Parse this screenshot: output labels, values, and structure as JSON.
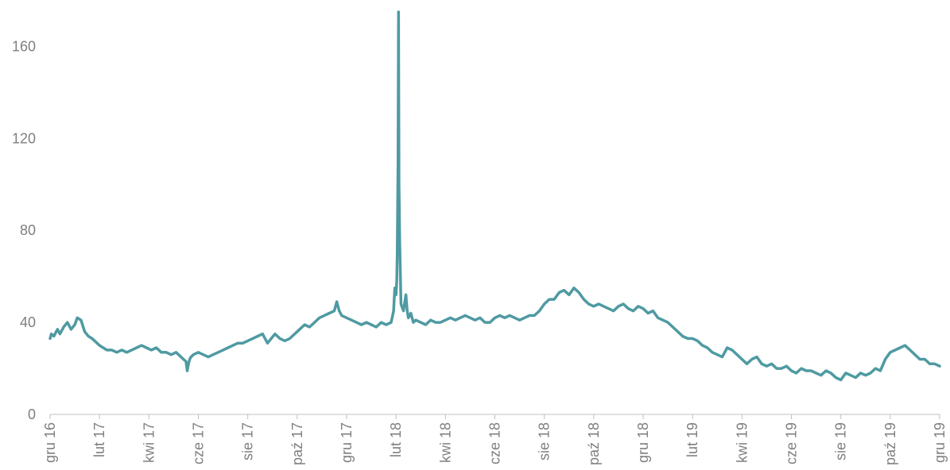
{
  "chart_data": {
    "type": "line",
    "title": "",
    "xlabel": "",
    "ylabel": "",
    "ylim": [
      0,
      175
    ],
    "y_ticks": [
      0,
      40,
      80,
      120,
      160
    ],
    "x_tick_labels": [
      "gru 16",
      "lut 17",
      "kwi 17",
      "cze 17",
      "sie 17",
      "paź 17",
      "gru 17",
      "lut 18",
      "kwi 18",
      "cze 18",
      "sie 18",
      "paź 18",
      "gru 18",
      "lut 19",
      "kwi 19",
      "cze 19",
      "sie 19",
      "paź 19",
      "gru 19"
    ],
    "x_range": [
      0,
      36
    ],
    "grid": false,
    "legend": "none",
    "colors": {
      "line": "#4f9aa2",
      "axis": "#bfbfbf",
      "tick_text": "#7f7f7f"
    },
    "series": [
      {
        "x": [
          0,
          0.05,
          0.15,
          0.3,
          0.4,
          0.55,
          0.7,
          0.85,
          1.0,
          1.1,
          1.25,
          1.4,
          1.55,
          1.7,
          1.8,
          1.9,
          2.0,
          2.15,
          2.3,
          2.5,
          2.7,
          2.9,
          3.1,
          3.3,
          3.5,
          3.7,
          3.9,
          4.1,
          4.3,
          4.5,
          4.7,
          4.9,
          5.1,
          5.3,
          5.5,
          5.55,
          5.6,
          5.65,
          5.7,
          5.8,
          6.0,
          6.2,
          6.4,
          6.6,
          6.8,
          7.0,
          7.2,
          7.4,
          7.6,
          7.8,
          8.0,
          8.2,
          8.4,
          8.6,
          8.7,
          8.8,
          8.95,
          9.1,
          9.3,
          9.5,
          9.7,
          9.9,
          10.1,
          10.3,
          10.5,
          10.7,
          10.9,
          11.1,
          11.3,
          11.5,
          11.6,
          11.7,
          11.8,
          12.0,
          12.2,
          12.4,
          12.6,
          12.8,
          13.0,
          13.2,
          13.4,
          13.6,
          13.8,
          13.9,
          13.95,
          14.0,
          14.03,
          14.05,
          14.08,
          14.1,
          14.12,
          14.15,
          14.2,
          14.3,
          14.4,
          14.45,
          14.5,
          14.6,
          14.7,
          14.8,
          15.0,
          15.2,
          15.4,
          15.6,
          15.8,
          16.0,
          16.2,
          16.4,
          16.6,
          16.8,
          17.0,
          17.2,
          17.4,
          17.6,
          17.8,
          18.0,
          18.2,
          18.4,
          18.6,
          18.8,
          19.0,
          19.2,
          19.4,
          19.6,
          19.8,
          20.0,
          20.2,
          20.4,
          20.6,
          20.8,
          21.0,
          21.2,
          21.4,
          21.6,
          21.8,
          22.0,
          22.2,
          22.4,
          22.6,
          22.8,
          23.0,
          23.2,
          23.4,
          23.6,
          23.8,
          24.0,
          24.2,
          24.4,
          24.6,
          24.8,
          25.0,
          25.2,
          25.4,
          25.6,
          25.8,
          26.0,
          26.2,
          26.4,
          26.6,
          26.8,
          27.0,
          27.2,
          27.4,
          27.6,
          27.8,
          28.0,
          28.2,
          28.4,
          28.6,
          28.8,
          29.0,
          29.2,
          29.4,
          29.6,
          29.8,
          30.0,
          30.2,
          30.4,
          30.6,
          30.8,
          31.0,
          31.2,
          31.4,
          31.6,
          31.8,
          32.0,
          32.2,
          32.4,
          32.6,
          32.8,
          33.0,
          33.2,
          33.4,
          33.6,
          33.8,
          34.0,
          34.2,
          34.4,
          34.6,
          34.8,
          35.0,
          35.2,
          35.4,
          35.6,
          35.8,
          36.0
        ],
        "y": [
          33,
          35,
          34,
          37,
          35,
          38,
          40,
          37,
          39,
          42,
          41,
          36,
          34,
          33,
          32,
          31,
          30,
          29,
          28,
          28,
          27,
          28,
          27,
          28,
          29,
          30,
          29,
          28,
          29,
          27,
          27,
          26,
          27,
          25,
          23,
          19,
          22,
          24,
          25,
          26,
          27,
          26,
          25,
          26,
          27,
          28,
          29,
          30,
          31,
          31,
          32,
          33,
          34,
          35,
          33,
          31,
          33,
          35,
          33,
          32,
          33,
          35,
          37,
          39,
          38,
          40,
          42,
          43,
          44,
          45,
          49,
          45,
          43,
          42,
          41,
          40,
          39,
          40,
          39,
          38,
          40,
          39,
          40,
          45,
          55,
          52,
          58,
          70,
          110,
          175,
          100,
          75,
          48,
          45,
          52,
          45,
          42,
          44,
          40,
          41,
          40,
          39,
          41,
          40,
          40,
          41,
          42,
          41,
          42,
          43,
          42,
          41,
          42,
          40,
          40,
          42,
          43,
          42,
          43,
          42,
          41,
          42,
          43,
          43,
          45,
          48,
          50,
          50,
          53,
          54,
          52,
          55,
          53,
          50,
          48,
          47,
          48,
          47,
          46,
          45,
          47,
          48,
          46,
          45,
          47,
          46,
          44,
          45,
          42,
          41,
          40,
          38,
          36,
          34,
          33,
          33,
          32,
          30,
          29,
          27,
          26,
          25,
          29,
          28,
          26,
          24,
          22,
          24,
          25,
          22,
          21,
          22,
          20,
          20,
          21,
          19,
          18,
          20,
          19,
          19,
          18,
          17,
          19,
          18,
          16,
          15,
          18,
          17,
          16,
          18,
          17,
          18,
          20,
          19,
          24,
          27,
          28,
          29,
          30,
          28,
          26,
          24,
          24,
          22,
          22,
          21
        ]
      }
    ]
  }
}
